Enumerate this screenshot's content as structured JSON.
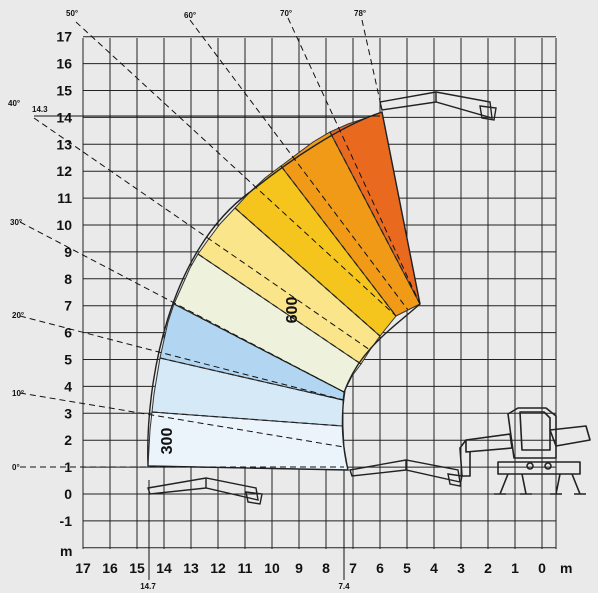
{
  "y_axis": {
    "unit": "m",
    "ticks": [
      "17",
      "16",
      "15",
      "14",
      "13",
      "12",
      "11",
      "10",
      "9",
      "8",
      "7",
      "6",
      "5",
      "4",
      "3",
      "2",
      "1",
      "0",
      "-1"
    ]
  },
  "x_axis": {
    "unit": "m",
    "ticks": [
      "17",
      "16",
      "15",
      "14",
      "13",
      "12",
      "11",
      "10",
      "9",
      "8",
      "7",
      "6",
      "5",
      "4",
      "3",
      "2",
      "1",
      "0"
    ]
  },
  "annotations": {
    "max_height": "14.3",
    "max_reach": "14.7",
    "reach_at_ground": "7.4"
  },
  "angles": [
    "0°",
    "10°",
    "20°",
    "30°",
    "40°",
    "50°",
    "60°",
    "70°",
    "78°"
  ],
  "zones": {
    "load_inner": "600",
    "load_outer": "300"
  },
  "colors": {
    "background": "#eaeaea",
    "grid": "#222222",
    "zone_red": "#e96a1e",
    "zone_orange": "#f09a18",
    "zone_yellow": "#f6c51d",
    "zone_light_yellow": "#fbe58a",
    "zone_cream": "#eef2dc",
    "zone_blue": "#b2d6f1",
    "zone_light_blue": "#d6e9f7",
    "zone_pale_blue": "#ebf3fb"
  }
}
